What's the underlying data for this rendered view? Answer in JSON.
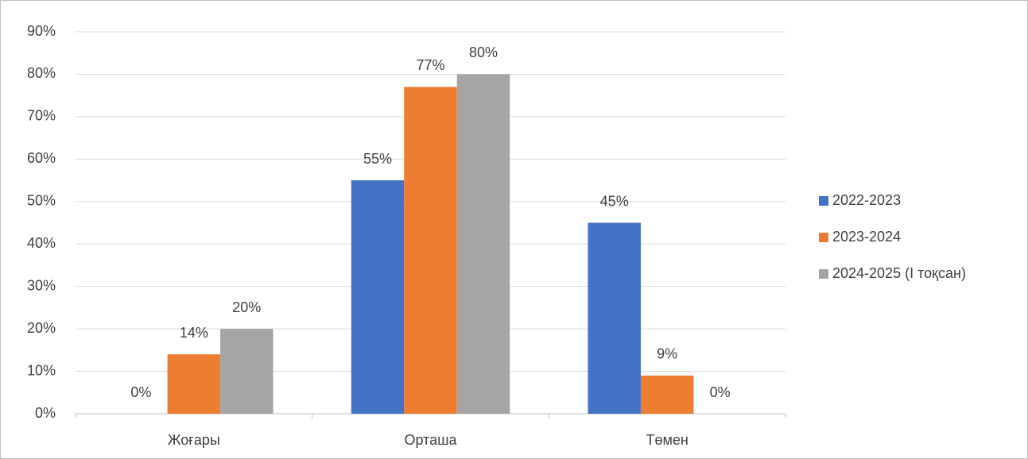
{
  "chart_data": {
    "type": "bar",
    "categories": [
      "Жоғары",
      "Орташа",
      "Төмен"
    ],
    "series": [
      {
        "name": "2022-2023",
        "color": "#4472c4",
        "values": [
          0,
          55,
          45
        ],
        "value_labels": [
          "0%",
          "55%",
          "45%"
        ]
      },
      {
        "name": "2023-2024",
        "color": "#ed7d31",
        "values": [
          14,
          77,
          9
        ],
        "value_labels": [
          "14%",
          "77%",
          "9%"
        ]
      },
      {
        "name": "2024-2025 (І тоқсан)",
        "color": "#a5a5a5",
        "values": [
          20,
          80,
          0
        ],
        "value_labels": [
          "20%",
          "80%",
          "0%"
        ]
      }
    ],
    "ylim": [
      0,
      90
    ],
    "yticks": [
      {
        "value": 0,
        "label": "0%"
      },
      {
        "value": 10,
        "label": "10%"
      },
      {
        "value": 20,
        "label": "20%"
      },
      {
        "value": 30,
        "label": "30%"
      },
      {
        "value": 40,
        "label": "40%"
      },
      {
        "value": 50,
        "label": "50%"
      },
      {
        "value": 60,
        "label": "60%"
      },
      {
        "value": 70,
        "label": "70%"
      },
      {
        "value": 80,
        "label": "80%"
      },
      {
        "value": 90,
        "label": "90%"
      }
    ],
    "grid": true,
    "legend": "right"
  }
}
